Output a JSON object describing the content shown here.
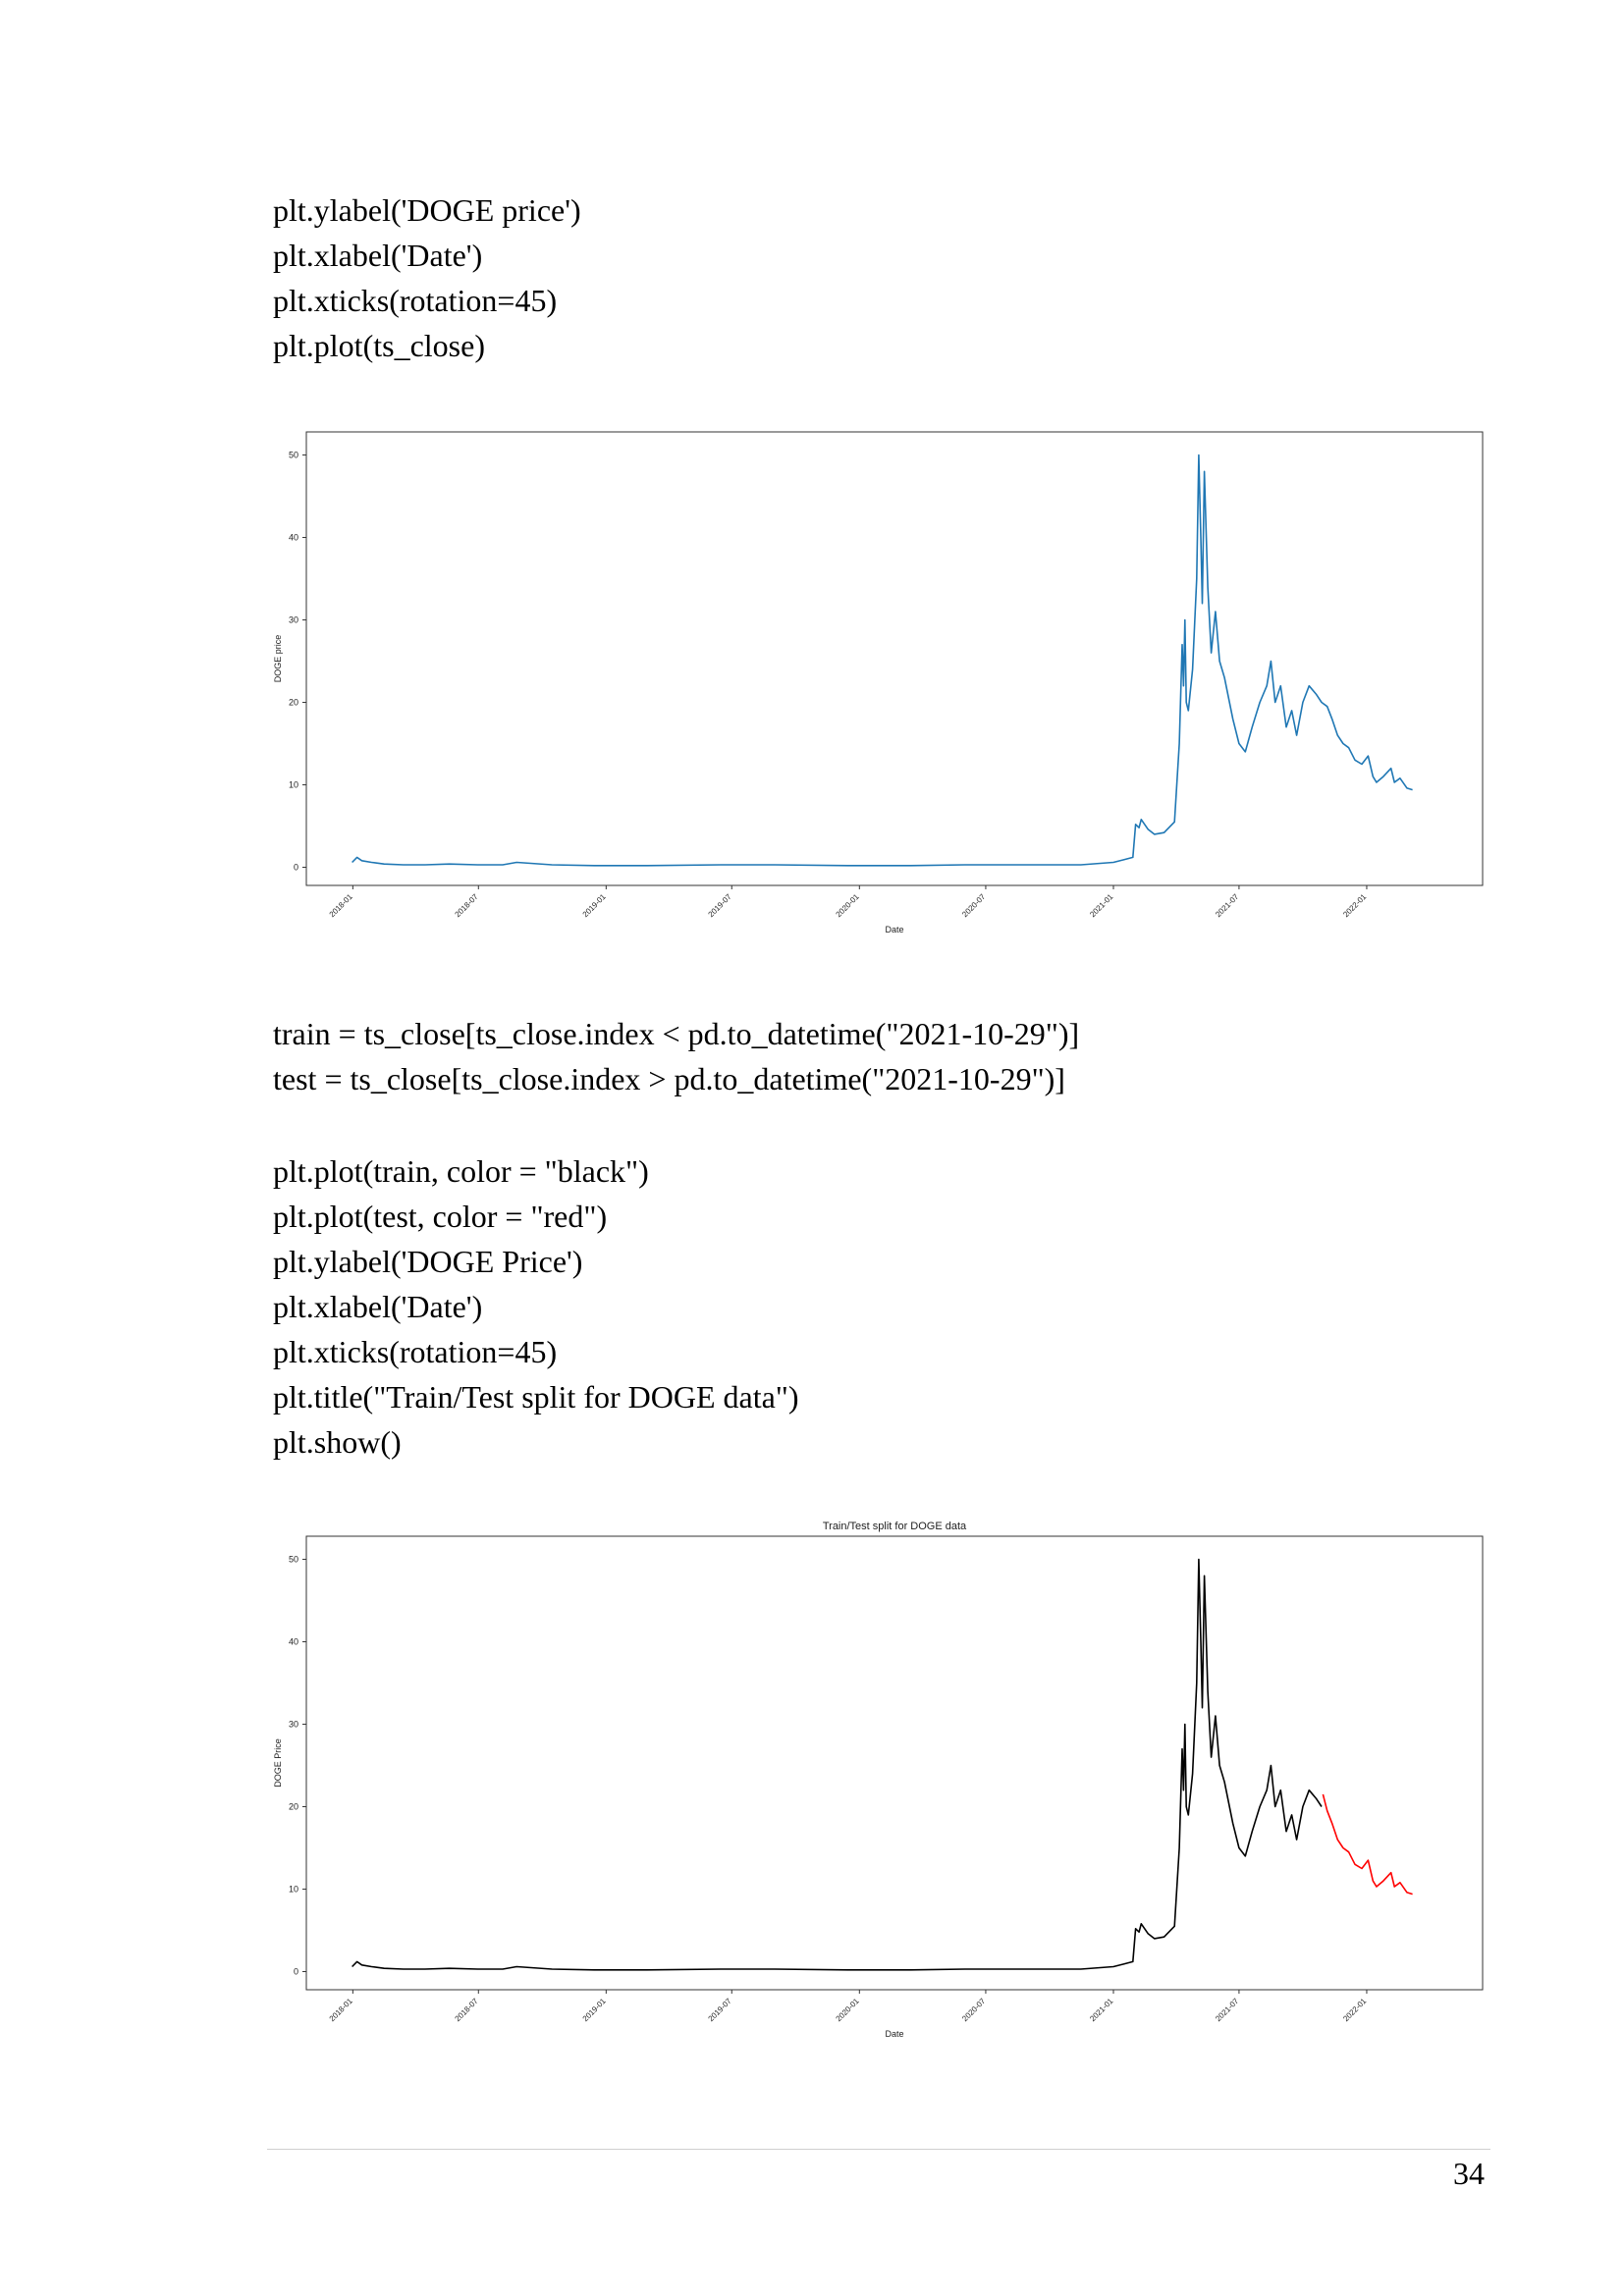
{
  "code_block_1": [
    "plt.ylabel('DOGE price')",
    "plt.xlabel('Date')",
    "plt.xticks(rotation=45)",
    "plt.plot(ts_close)"
  ],
  "code_block_2": [
    "train = ts_close[ts_close.index < pd.to_datetime(\"2021-10-29\")]",
    "test = ts_close[ts_close.index > pd.to_datetime(\"2021-10-29\")]"
  ],
  "code_block_3": [
    "plt.plot(train, color = \"black\")",
    "plt.plot(test, color = \"red\")",
    "plt.ylabel('DOGE Price')",
    "plt.xlabel('Date')",
    "plt.xticks(rotation=45)",
    "plt.title(\"Train/Test split for DOGE data\")",
    "plt.show()"
  ],
  "page_number": "34",
  "chart_data": [
    {
      "type": "line",
      "title": "",
      "xlabel": "Date",
      "ylabel": "DOGE price",
      "x_tick_labels": [
        "2018-01",
        "2018-07",
        "2019-01",
        "2019-07",
        "2020-01",
        "2020-07",
        "2021-01",
        "2021-07",
        "2022-01"
      ],
      "y_ticks": [
        0,
        10,
        20,
        30,
        40,
        50
      ],
      "ylim": [
        -2.2,
        52.8
      ],
      "xlim": [
        "2017-10-26",
        "2022-06-17"
      ],
      "grid": false,
      "series": [
        {
          "color": "#1f77b4",
          "x": [
            "2017-12-31",
            "2018-01-07",
            "2018-01-14",
            "2018-01-28",
            "2018-02-15",
            "2018-03-15",
            "2018-04-15",
            "2018-05-20",
            "2018-06-30",
            "2018-08-05",
            "2018-08-25",
            "2018-10-15",
            "2018-12-15",
            "2019-03-01",
            "2019-06-15",
            "2019-09-01",
            "2019-12-15",
            "2020-03-15",
            "2020-06-01",
            "2020-08-20",
            "2020-11-15",
            "2021-01-01",
            "2021-01-15",
            "2021-01-29",
            "2021-02-02",
            "2021-02-07",
            "2021-02-10",
            "2021-02-20",
            "2021-03-01",
            "2021-03-15",
            "2021-03-30",
            "2021-04-06",
            "2021-04-10",
            "2021-04-12",
            "2021-04-14",
            "2021-04-16",
            "2021-04-19",
            "2021-04-25",
            "2021-05-01",
            "2021-05-04",
            "2021-05-07",
            "2021-05-09",
            "2021-05-12",
            "2021-05-17",
            "2021-05-22",
            "2021-05-28",
            "2021-06-03",
            "2021-06-10",
            "2021-06-22",
            "2021-07-01",
            "2021-07-10",
            "2021-07-20",
            "2021-07-31",
            "2021-08-10",
            "2021-08-16",
            "2021-08-22",
            "2021-08-30",
            "2021-09-07",
            "2021-09-15",
            "2021-09-22",
            "2021-10-01",
            "2021-10-10",
            "2021-10-20",
            "2021-10-28",
            "2021-11-05",
            "2021-11-12",
            "2021-11-20",
            "2021-11-28",
            "2021-12-06",
            "2021-12-15",
            "2021-12-25",
            "2022-01-03",
            "2022-01-10",
            "2022-01-15",
            "2022-01-25",
            "2022-02-05",
            "2022-02-10",
            "2022-02-18",
            "2022-02-28",
            "2022-03-08"
          ],
          "y": [
            0.6,
            1.2,
            0.8,
            0.6,
            0.4,
            0.3,
            0.3,
            0.4,
            0.3,
            0.3,
            0.6,
            0.3,
            0.2,
            0.2,
            0.3,
            0.3,
            0.2,
            0.2,
            0.3,
            0.3,
            0.3,
            0.6,
            0.9,
            1.2,
            5.2,
            4.8,
            5.8,
            4.6,
            4.0,
            4.2,
            5.5,
            15.0,
            27.0,
            22.0,
            30.0,
            20.0,
            19.0,
            24.0,
            35.0,
            50.0,
            40.0,
            32.0,
            48.0,
            34.0,
            26.0,
            31.0,
            25.0,
            23.0,
            18.0,
            15.0,
            14.0,
            17.0,
            20.0,
            22.0,
            25.0,
            20.0,
            22.0,
            17.0,
            19.0,
            16.0,
            20.0,
            22.0,
            21.0,
            20.0,
            19.5,
            18.0,
            16.0,
            15.0,
            14.5,
            13.0,
            12.5,
            13.5,
            11.0,
            10.3,
            11.0,
            12.0,
            10.3,
            10.8,
            9.6,
            9.4
          ]
        }
      ]
    },
    {
      "type": "line",
      "title": "Train/Test split for DOGE data",
      "xlabel": "Date",
      "ylabel": "DOGE Price",
      "x_tick_labels": [
        "2018-01",
        "2018-07",
        "2019-01",
        "2019-07",
        "2020-01",
        "2020-07",
        "2021-01",
        "2021-07",
        "2022-01"
      ],
      "y_ticks": [
        0,
        10,
        20,
        30,
        40,
        50
      ],
      "ylim": [
        -2.2,
        52.8
      ],
      "xlim": [
        "2017-10-26",
        "2022-06-17"
      ],
      "grid": false,
      "series": [
        {
          "color": "#000000",
          "x": [
            "2017-12-31",
            "2018-01-07",
            "2018-01-14",
            "2018-01-28",
            "2018-02-15",
            "2018-03-15",
            "2018-04-15",
            "2018-05-20",
            "2018-06-30",
            "2018-08-05",
            "2018-08-25",
            "2018-10-15",
            "2018-12-15",
            "2019-03-01",
            "2019-06-15",
            "2019-09-01",
            "2019-12-15",
            "2020-03-15",
            "2020-06-01",
            "2020-08-20",
            "2020-11-15",
            "2021-01-01",
            "2021-01-15",
            "2021-01-29",
            "2021-02-02",
            "2021-02-07",
            "2021-02-10",
            "2021-02-20",
            "2021-03-01",
            "2021-03-15",
            "2021-03-30",
            "2021-04-06",
            "2021-04-10",
            "2021-04-12",
            "2021-04-14",
            "2021-04-16",
            "2021-04-19",
            "2021-04-25",
            "2021-05-01",
            "2021-05-04",
            "2021-05-07",
            "2021-05-09",
            "2021-05-12",
            "2021-05-17",
            "2021-05-22",
            "2021-05-28",
            "2021-06-03",
            "2021-06-10",
            "2021-06-22",
            "2021-07-01",
            "2021-07-10",
            "2021-07-20",
            "2021-07-31",
            "2021-08-10",
            "2021-08-16",
            "2021-08-22",
            "2021-08-30",
            "2021-09-07",
            "2021-09-15",
            "2021-09-22",
            "2021-10-01",
            "2021-10-10",
            "2021-10-20",
            "2021-10-28"
          ],
          "y": [
            0.6,
            1.2,
            0.8,
            0.6,
            0.4,
            0.3,
            0.3,
            0.4,
            0.3,
            0.3,
            0.6,
            0.3,
            0.2,
            0.2,
            0.3,
            0.3,
            0.2,
            0.2,
            0.3,
            0.3,
            0.3,
            0.6,
            0.9,
            1.2,
            5.2,
            4.8,
            5.8,
            4.6,
            4.0,
            4.2,
            5.5,
            15.0,
            27.0,
            22.0,
            30.0,
            20.0,
            19.0,
            24.0,
            35.0,
            50.0,
            40.0,
            32.0,
            48.0,
            34.0,
            26.0,
            31.0,
            25.0,
            23.0,
            18.0,
            15.0,
            14.0,
            17.0,
            20.0,
            22.0,
            25.0,
            20.0,
            22.0,
            17.0,
            19.0,
            16.0,
            20.0,
            22.0,
            21.0,
            20.0
          ]
        },
        {
          "color": "#ff0000",
          "x": [
            "2021-10-30",
            "2021-11-05",
            "2021-11-12",
            "2021-11-20",
            "2021-11-28",
            "2021-12-06",
            "2021-12-15",
            "2021-12-25",
            "2022-01-03",
            "2022-01-10",
            "2022-01-15",
            "2022-01-25",
            "2022-02-05",
            "2022-02-10",
            "2022-02-18",
            "2022-02-28",
            "2022-03-08"
          ],
          "y": [
            21.5,
            19.5,
            18.0,
            16.0,
            15.0,
            14.5,
            13.0,
            12.5,
            13.5,
            11.0,
            10.3,
            11.0,
            12.0,
            10.3,
            10.8,
            9.6,
            9.4
          ]
        }
      ]
    }
  ]
}
